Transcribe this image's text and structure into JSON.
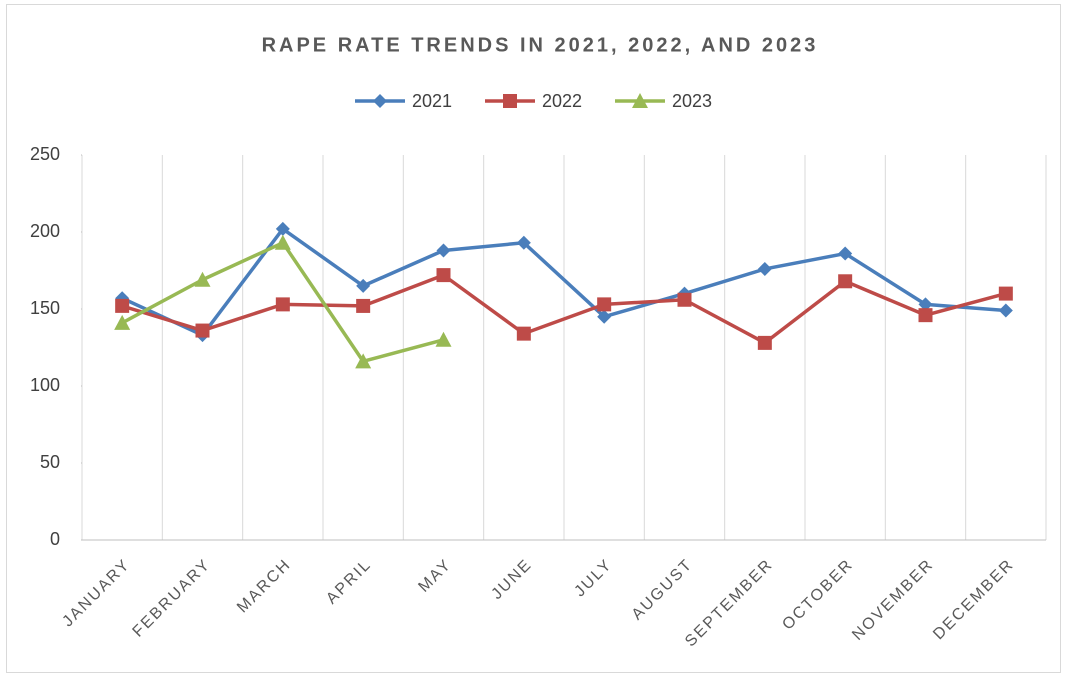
{
  "chart_data": {
    "type": "line",
    "title": "RAPE RATE TRENDS IN 2021, 2022, AND 2023",
    "categories": [
      "JANUARY",
      "FEBRUARY",
      "MARCH",
      "APRIL",
      "MAY",
      "JUNE",
      "JULY",
      "AUGUST",
      "SEPTEMBER",
      "OCTOBER",
      "NOVEMBER",
      "DECEMBER"
    ],
    "series": [
      {
        "name": "2021",
        "color": "#4a7ebb",
        "marker": "diamond",
        "values": [
          157,
          133,
          202,
          165,
          188,
          193,
          145,
          160,
          176,
          186,
          153,
          149
        ]
      },
      {
        "name": "2022",
        "color": "#be4b48",
        "marker": "square",
        "values": [
          152,
          136,
          153,
          152,
          172,
          134,
          153,
          156,
          128,
          168,
          146,
          160
        ]
      },
      {
        "name": "2023",
        "color": "#98b954",
        "marker": "triangle",
        "values": [
          141,
          169,
          193,
          116,
          130,
          null,
          null,
          null,
          null,
          null,
          null,
          null
        ]
      }
    ],
    "ylim": [
      0,
      250
    ],
    "yticks": [
      0,
      50,
      100,
      150,
      200,
      250
    ],
    "grid": "x",
    "legend": "top"
  }
}
